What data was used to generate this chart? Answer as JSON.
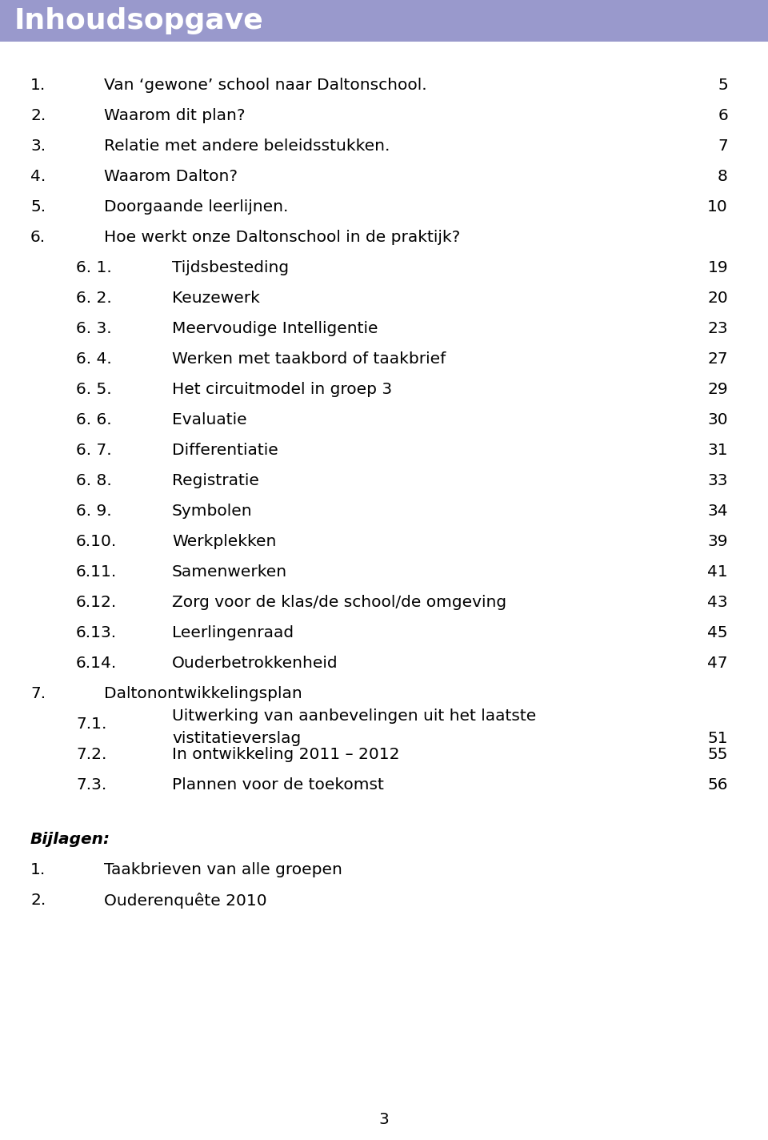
{
  "title": "Inhoudsopgave",
  "title_bg_color": "#9999cc",
  "title_text_color": "#ffffff",
  "bg_color": "#ffffff",
  "text_color": "#000000",
  "font_family": "DejaVu Sans",
  "entries": [
    {
      "num": "1.",
      "indent": 0,
      "sub": "",
      "text": "Van ‘gewone’ school naar Daltonschool.",
      "page": "5"
    },
    {
      "num": "2.",
      "indent": 0,
      "sub": "",
      "text": "Waarom dit plan?",
      "page": "6"
    },
    {
      "num": "3.",
      "indent": 0,
      "sub": "",
      "text": "Relatie met andere beleidsstukken.",
      "page": "7"
    },
    {
      "num": "4.",
      "indent": 0,
      "sub": "",
      "text": "Waarom Dalton?",
      "page": "8"
    },
    {
      "num": "5.",
      "indent": 0,
      "sub": "",
      "text": "Doorgaande leerlijnen.",
      "page": "10"
    },
    {
      "num": "6.",
      "indent": 0,
      "sub": "",
      "text": "Hoe werkt onze Daltonschool in de praktijk?",
      "page": ""
    },
    {
      "num": "6. 1.",
      "indent": 1,
      "sub": "",
      "text": "Tijdsbesteding",
      "page": "19"
    },
    {
      "num": "6. 2.",
      "indent": 1,
      "sub": "",
      "text": "Keuzewerk",
      "page": "20"
    },
    {
      "num": "6. 3.",
      "indent": 1,
      "sub": "",
      "text": "Meervoudige Intelligentie",
      "page": "23"
    },
    {
      "num": "6. 4.",
      "indent": 1,
      "sub": "",
      "text": "Werken met taakbord of taakbrief",
      "page": "27"
    },
    {
      "num": "6. 5.",
      "indent": 1,
      "sub": "",
      "text": "Het circuitmodel in groep 3",
      "page": "29"
    },
    {
      "num": "6. 6.",
      "indent": 1,
      "sub": "",
      "text": "Evaluatie",
      "page": "30"
    },
    {
      "num": "6. 7.",
      "indent": 1,
      "sub": "",
      "text": "Differentiatie",
      "page": "31"
    },
    {
      "num": "6. 8.",
      "indent": 1,
      "sub": "",
      "text": "Registratie",
      "page": "33"
    },
    {
      "num": "6. 9.",
      "indent": 1,
      "sub": "",
      "text": "Symbolen",
      "page": "34"
    },
    {
      "num": "6.10.",
      "indent": 1,
      "sub": "",
      "text": "Werkplekken",
      "page": "39"
    },
    {
      "num": "6.11.",
      "indent": 1,
      "sub": "",
      "text": "Samenwerken",
      "page": "41"
    },
    {
      "num": "6.12.",
      "indent": 1,
      "sub": "",
      "text": "Zorg voor de klas/de school/de omgeving",
      "page": "43"
    },
    {
      "num": "6.13.",
      "indent": 1,
      "sub": "",
      "text": "Leerlingenraad",
      "page": "45"
    },
    {
      "num": "6.14.",
      "indent": 1,
      "sub": "",
      "text": "Ouderbetrokkenheid",
      "page": "47"
    },
    {
      "num": "7.",
      "indent": 0,
      "sub": "",
      "text": "Daltonontwikkelingsplan",
      "page": ""
    },
    {
      "num": "7.1.",
      "indent": 1,
      "sub": "",
      "text": "Uitwerking van aanbevelingen uit het laatste\nvistitatieverslag",
      "page": "51"
    },
    {
      "num": "7.2.",
      "indent": 1,
      "sub": "",
      "text": "In ontwikkeling 2011 – 2012",
      "page": "55"
    },
    {
      "num": "7.3.",
      "indent": 1,
      "sub": "",
      "text": "Plannen voor de toekomst",
      "page": "56"
    }
  ],
  "bijlagen_label": "Bijlagen:",
  "bijlagen_items": [
    {
      "num": "1.",
      "text": "Taakbrieven van alle groepen"
    },
    {
      "num": "2.",
      "text": "Ouderenquête 2010"
    }
  ],
  "footer_page": "3"
}
